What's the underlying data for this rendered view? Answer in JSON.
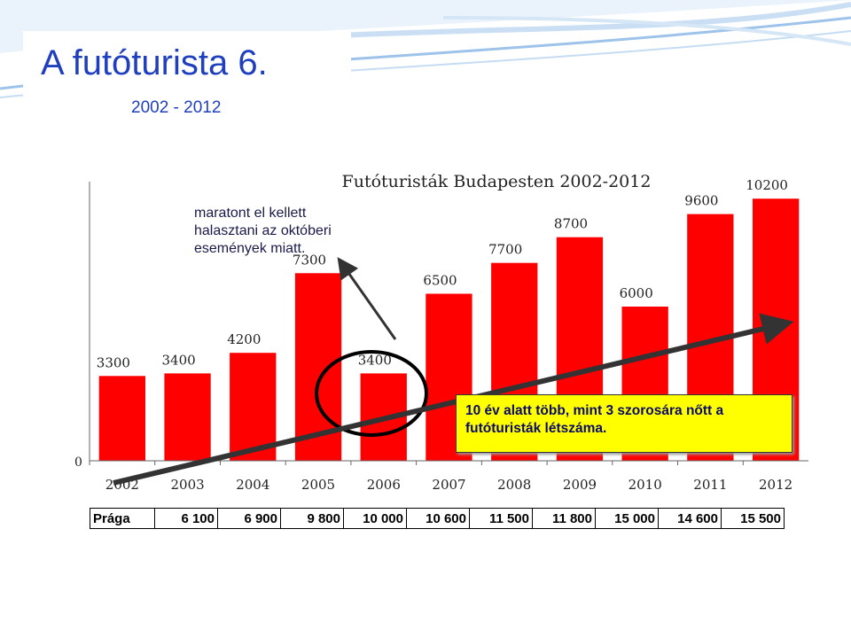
{
  "slide": {
    "title": "A futóturista 6.",
    "subtitle": "2002 - 2012"
  },
  "note": "maratont el kellett halasztani az októberi események miatt.",
  "callout": "10 év alatt több, mint 3 szorosára nőtt a futóturisták létszáma.",
  "colors": {
    "bar": "#ff0000",
    "title": "#1f3fbf",
    "callout_bg": "#ffff00",
    "wave": "#9ec3ea"
  },
  "chart_data": {
    "type": "bar",
    "title": "Futóturisták Budapesten 2002-2012",
    "xlabel": "",
    "ylabel": "",
    "categories": [
      "2002",
      "2003",
      "2004",
      "2005",
      "2006",
      "2007",
      "2008",
      "2009",
      "2010",
      "2011",
      "2012"
    ],
    "values": [
      3300,
      3400,
      4200,
      7300,
      3400,
      6500,
      7700,
      8700,
      6000,
      9600,
      10200
    ],
    "data_labels": [
      "3300",
      "3400",
      "4200",
      "7300",
      "3400",
      "6500",
      "7700",
      "8700",
      "6000",
      "9600",
      "10200"
    ],
    "y_tick_label": "0",
    "ylim": [
      0,
      11000
    ],
    "grid": false,
    "legend": "none"
  },
  "prague_table": {
    "label": "Prága",
    "values": [
      "6 100",
      "6 900",
      "9 800",
      "10 000",
      "10 600",
      "11 500",
      "11 800",
      "15 000",
      "14 600",
      "15 500"
    ]
  }
}
